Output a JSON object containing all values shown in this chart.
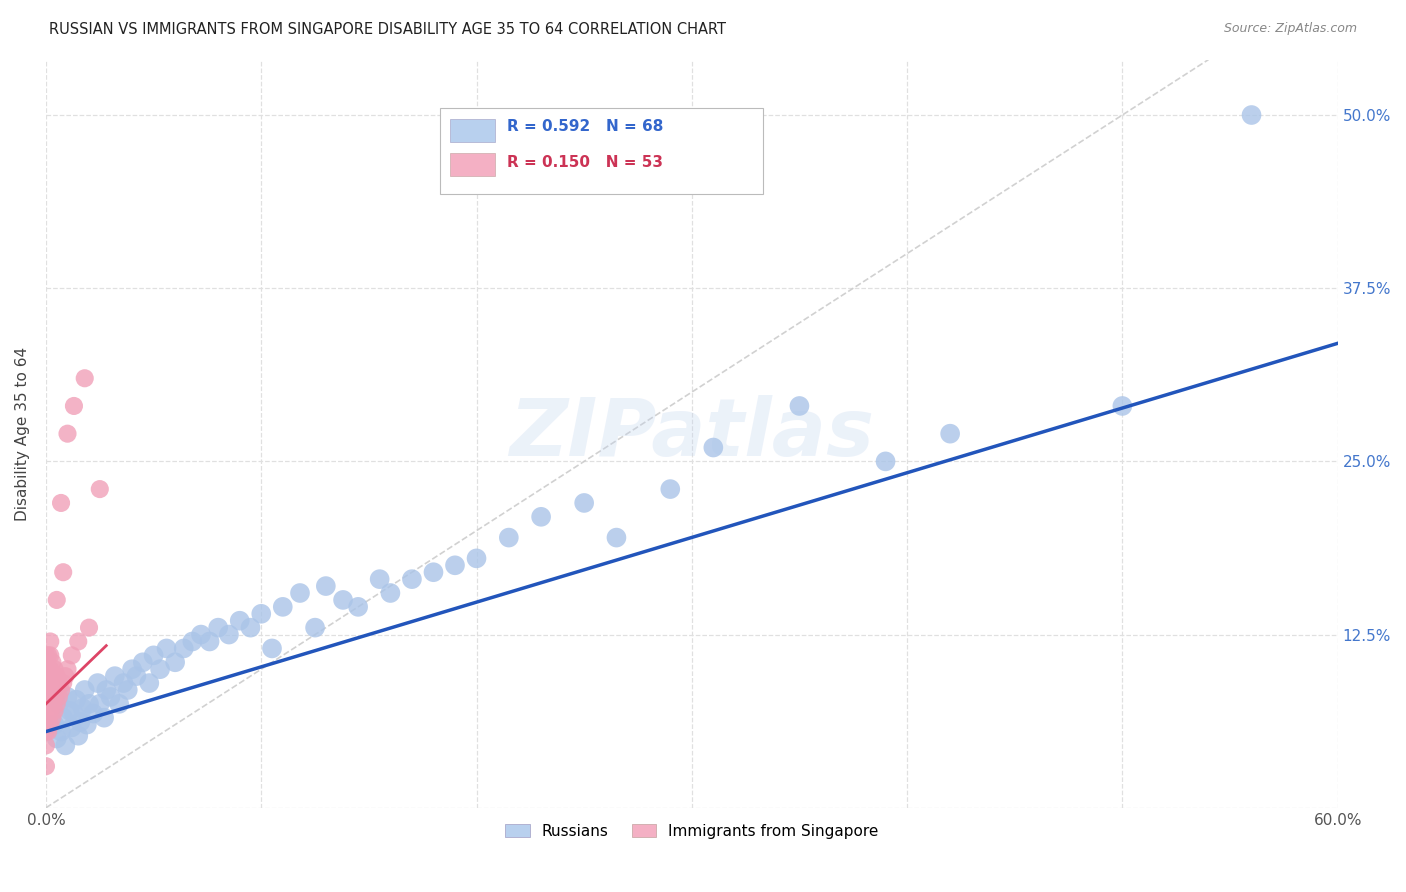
{
  "title": "RUSSIAN VS IMMIGRANTS FROM SINGAPORE DISABILITY AGE 35 TO 64 CORRELATION CHART",
  "source": "Source: ZipAtlas.com",
  "ylabel": "Disability Age 35 to 64",
  "xlim": [
    0.0,
    0.6
  ],
  "ylim": [
    0.0,
    0.54
  ],
  "background_color": "#ffffff",
  "grid_color": "#e0e0e0",
  "watermark": "ZIPatlas",
  "russian_color": "#aac4e8",
  "singapore_color": "#f0a0b8",
  "russian_line_color": "#2255bb",
  "singapore_line_color": "#dd4466",
  "diagonal_color": "#cccccc",
  "legend_russian_color": "#b8d0ee",
  "legend_singapore_color": "#f4b0c4",
  "R_russian": "0.592",
  "N_russian": "68",
  "R_singapore": "0.150",
  "N_singapore": "53",
  "russians_x": [
    0.004,
    0.005,
    0.006,
    0.007,
    0.008,
    0.009,
    0.01,
    0.011,
    0.012,
    0.013,
    0.014,
    0.015,
    0.016,
    0.017,
    0.018,
    0.019,
    0.02,
    0.022,
    0.024,
    0.025,
    0.027,
    0.028,
    0.03,
    0.032,
    0.034,
    0.036,
    0.038,
    0.04,
    0.042,
    0.045,
    0.048,
    0.05,
    0.053,
    0.056,
    0.06,
    0.064,
    0.068,
    0.072,
    0.076,
    0.08,
    0.085,
    0.09,
    0.095,
    0.1,
    0.105,
    0.11,
    0.118,
    0.125,
    0.13,
    0.138,
    0.145,
    0.155,
    0.16,
    0.17,
    0.18,
    0.19,
    0.2,
    0.215,
    0.23,
    0.25,
    0.265,
    0.29,
    0.31,
    0.35,
    0.39,
    0.42,
    0.5,
    0.56
  ],
  "russians_y": [
    0.06,
    0.05,
    0.075,
    0.055,
    0.065,
    0.045,
    0.08,
    0.07,
    0.058,
    0.068,
    0.078,
    0.052,
    0.062,
    0.072,
    0.085,
    0.06,
    0.075,
    0.068,
    0.09,
    0.075,
    0.065,
    0.085,
    0.08,
    0.095,
    0.075,
    0.09,
    0.085,
    0.1,
    0.095,
    0.105,
    0.09,
    0.11,
    0.1,
    0.115,
    0.105,
    0.115,
    0.12,
    0.125,
    0.12,
    0.13,
    0.125,
    0.135,
    0.13,
    0.14,
    0.115,
    0.145,
    0.155,
    0.13,
    0.16,
    0.15,
    0.145,
    0.165,
    0.155,
    0.165,
    0.17,
    0.175,
    0.18,
    0.195,
    0.21,
    0.22,
    0.195,
    0.23,
    0.26,
    0.29,
    0.25,
    0.27,
    0.29,
    0.5
  ],
  "singapore_x": [
    0.0,
    0.0,
    0.0,
    0.0,
    0.0,
    0.0,
    0.0,
    0.0,
    0.0,
    0.0,
    0.001,
    0.001,
    0.001,
    0.001,
    0.001,
    0.001,
    0.001,
    0.001,
    0.002,
    0.002,
    0.002,
    0.002,
    0.002,
    0.002,
    0.002,
    0.003,
    0.003,
    0.003,
    0.003,
    0.003,
    0.004,
    0.004,
    0.004,
    0.004,
    0.005,
    0.005,
    0.005,
    0.005,
    0.006,
    0.006,
    0.007,
    0.007,
    0.008,
    0.008,
    0.009,
    0.01,
    0.01,
    0.012,
    0.013,
    0.015,
    0.018,
    0.02,
    0.025
  ],
  "singapore_y": [
    0.03,
    0.045,
    0.055,
    0.065,
    0.07,
    0.075,
    0.08,
    0.09,
    0.1,
    0.11,
    0.055,
    0.065,
    0.075,
    0.085,
    0.09,
    0.095,
    0.1,
    0.11,
    0.06,
    0.07,
    0.08,
    0.09,
    0.1,
    0.11,
    0.12,
    0.065,
    0.075,
    0.085,
    0.095,
    0.105,
    0.07,
    0.08,
    0.09,
    0.1,
    0.075,
    0.085,
    0.095,
    0.15,
    0.08,
    0.09,
    0.085,
    0.22,
    0.09,
    0.17,
    0.095,
    0.1,
    0.27,
    0.11,
    0.29,
    0.12,
    0.31,
    0.13,
    0.23
  ]
}
